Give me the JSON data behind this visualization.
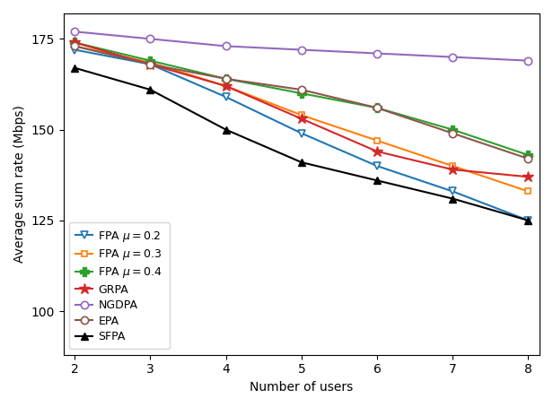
{
  "x": [
    2,
    3,
    4,
    5,
    6,
    7,
    8
  ],
  "series": [
    {
      "name": "FPA mu=0.2",
      "values": [
        172,
        168,
        159,
        149,
        140,
        133,
        125
      ],
      "color": "#1f77b4",
      "marker": "v",
      "hollow": true,
      "label": "FPA $\\mu = 0.2$"
    },
    {
      "name": "FPA mu=0.3",
      "values": [
        173,
        168.5,
        162,
        154,
        147,
        140,
        133
      ],
      "color": "#ff7f0e",
      "marker": "s",
      "hollow": true,
      "label": "FPA $\\mu = 0.3$"
    },
    {
      "name": "FPA mu=0.4",
      "values": [
        174,
        169,
        164,
        160,
        156,
        150,
        143
      ],
      "color": "#2ca02c",
      "marker": "P",
      "hollow": false,
      "label": "FPA $\\mu = 0.4$"
    },
    {
      "name": "GRPA",
      "values": [
        174,
        168,
        162,
        153,
        144,
        139,
        137
      ],
      "color": "#d62728",
      "marker": "*",
      "hollow": false,
      "label": "GRPA"
    },
    {
      "name": "NGDPA",
      "values": [
        177,
        175,
        173,
        172,
        171,
        170,
        169
      ],
      "color": "#9467bd",
      "marker": "o",
      "hollow": true,
      "label": "NGDPA"
    },
    {
      "name": "EPA",
      "values": [
        173,
        168,
        164,
        161,
        156,
        149,
        142
      ],
      "color": "#8c564b",
      "marker": "o",
      "hollow": true,
      "label": "EPA"
    },
    {
      "name": "SFPA",
      "values": [
        167,
        161,
        150,
        141,
        136,
        131,
        125
      ],
      "color": "#000000",
      "marker": "^",
      "hollow": false,
      "label": "SFPA"
    }
  ],
  "xlabel": "Number of users",
  "ylabel": "Average sum rate (Mbps)",
  "ylim": [
    88,
    182
  ],
  "yticks": [
    100,
    125,
    150,
    175
  ],
  "xlim": [
    1.85,
    8.15
  ],
  "figsize": [
    6.16,
    4.54
  ],
  "dpi": 100
}
